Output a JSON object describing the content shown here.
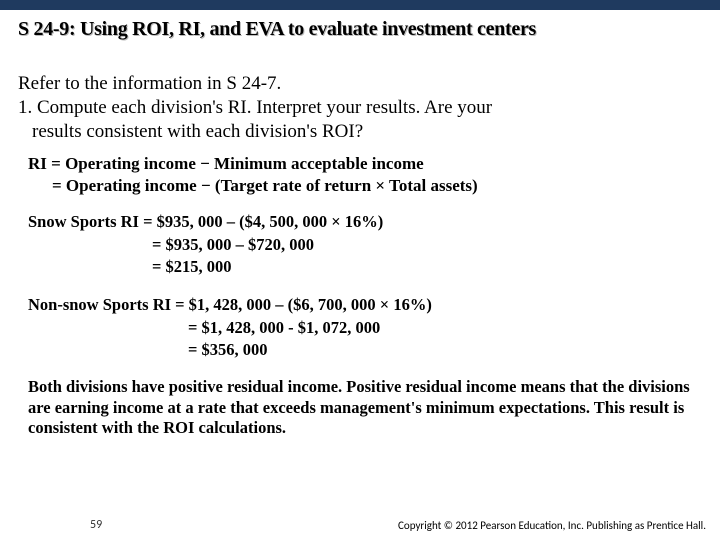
{
  "header": {
    "title": "S 24-9:   Using ROI, RI, and EVA to evaluate investment centers"
  },
  "intro": {
    "line1": "Refer to the information in S 24-7.",
    "line2": "1. Compute each division's RI. Interpret your results. Are your",
    "line3": "results consistent with each division's ROI?"
  },
  "formula": {
    "line1": "RI =  Operating income − Minimum acceptable income",
    "line2": "= Operating income − (Target rate of return × Total assets)"
  },
  "snow": {
    "line1": "Snow Sports RI  = $935, 000 – ($4, 500, 000 × 16%)",
    "line2": "= $935, 000 – $720, 000",
    "line3": "= $215, 000"
  },
  "nonsnow": {
    "line1": "Non-snow Sports RI = $1, 428, 000 – ($6, 700, 000 × 16%)",
    "line2": "= $1, 428, 000 - $1, 072, 000",
    "line3": "= $356, 000"
  },
  "conclusion": {
    "text": "Both divisions have positive residual income. Positive residual income means that the divisions are earning income at a rate that exceeds management's minimum expectations. This result is consistent with the ROI calculations."
  },
  "footer": {
    "page": "59",
    "copyright": "Copyright © 2012 Pearson Education, Inc. Publishing as Prentice Hall."
  }
}
